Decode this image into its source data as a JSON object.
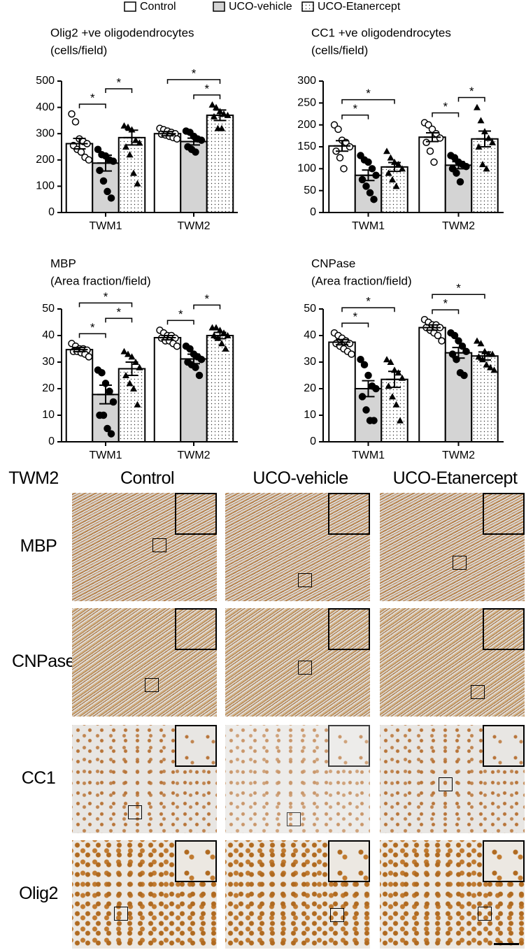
{
  "chart_data": [
    {
      "type": "bar",
      "title": "Olig2 +ve oligodendrocytes",
      "subtitle": "(cells/field)",
      "categories": [
        "TWM1",
        "TWM2"
      ],
      "ylim": [
        0,
        500
      ],
      "yticks": [
        0,
        100,
        200,
        300,
        400,
        500
      ],
      "series": [
        {
          "name": "Control",
          "color": "#ffffff",
          "marker": "open-circle",
          "values": [
            262,
            300
          ],
          "errors": [
            20,
            8
          ],
          "points": [
            [
              375,
              345,
              280,
              270,
              262,
              255,
              240,
              230,
              210,
              200
            ],
            [
              320,
              315,
              310,
              305,
              300,
              298,
              295,
              290,
              285,
              280
            ]
          ]
        },
        {
          "name": "UCO-vehicle",
          "color": "#d4d4d4",
          "marker": "circle",
          "values": [
            188,
            270
          ],
          "errors": [
            30,
            13
          ],
          "points": [
            [
              240,
              220,
              215,
              200,
              195,
              160,
              120,
              80,
              55
            ],
            [
              310,
              305,
              290,
              280,
              275,
              250,
              240,
              230
            ]
          ]
        },
        {
          "name": "UCO-Etanercept",
          "color": "#ffffff",
          "pattern": "dots",
          "marker": "triangle",
          "values": [
            285,
            370
          ],
          "errors": [
            28,
            20
          ],
          "points": [
            [
              330,
              325,
              315,
              275,
              265,
              250,
              220,
              150,
              110
            ],
            [
              410,
              400,
              385,
              375,
              370,
              365,
              320,
              320
            ]
          ]
        }
      ],
      "brackets": [
        {
          "category": "TWM1",
          "from": "Control",
          "to": "UCO-vehicle",
          "label": "*"
        },
        {
          "category": "TWM1",
          "from": "UCO-vehicle",
          "to": "UCO-Etanercept",
          "label": "*"
        },
        {
          "category": "TWM2",
          "from": "UCO-vehicle",
          "to": "UCO-Etanercept",
          "label": "*"
        },
        {
          "category": "TWM2",
          "from": "Control",
          "to": "UCO-Etanercept",
          "label": "*"
        }
      ]
    },
    {
      "type": "bar",
      "title": "CC1 +ve oligodendrocytes",
      "subtitle": "(cells/field)",
      "categories": [
        "TWM1",
        "TWM2"
      ],
      "ylim": [
        0,
        300
      ],
      "yticks": [
        0,
        50,
        100,
        150,
        200,
        250,
        300
      ],
      "series": [
        {
          "name": "Control",
          "color": "#ffffff",
          "marker": "open-circle",
          "values": [
            152,
            172
          ],
          "errors": [
            12,
            10
          ],
          "points": [
            [
              200,
              190,
              165,
              160,
              150,
              140,
              125,
              100
            ],
            [
              205,
              200,
              190,
              180,
              170,
              160,
              140,
              115
            ]
          ]
        },
        {
          "name": "UCO-vehicle",
          "color": "#d4d4d4",
          "marker": "circle",
          "values": [
            85,
            108
          ],
          "errors": [
            12,
            8
          ],
          "points": [
            [
              130,
              120,
              115,
              100,
              85,
              75,
              60,
              45,
              30
            ],
            [
              130,
              125,
              115,
              110,
              105,
              100,
              90,
              70
            ]
          ]
        },
        {
          "name": "UCO-Etanercept",
          "color": "#ffffff",
          "pattern": "dots",
          "marker": "triangle",
          "values": [
            104,
            168
          ],
          "errors": [
            10,
            18
          ],
          "points": [
            [
              140,
              125,
              115,
              110,
              100,
              90,
              75,
              60
            ],
            [
              240,
              210,
              185,
              170,
              160,
              150,
              110,
              100
            ]
          ]
        }
      ],
      "brackets": [
        {
          "category": "TWM1",
          "from": "Control",
          "to": "UCO-vehicle",
          "label": "*"
        },
        {
          "category": "TWM1",
          "from": "Control",
          "to": "UCO-Etanercept",
          "label": "*"
        },
        {
          "category": "TWM2",
          "from": "Control",
          "to": "UCO-vehicle",
          "label": "*"
        },
        {
          "category": "TWM2",
          "from": "UCO-vehicle",
          "to": "UCO-Etanercept",
          "label": "*"
        }
      ]
    },
    {
      "type": "bar",
      "title": "MBP",
      "subtitle": "(Area fraction/field)",
      "categories": [
        "TWM1",
        "TWM2"
      ],
      "ylim": [
        0,
        50
      ],
      "yticks": [
        0,
        10,
        20,
        30,
        40,
        50
      ],
      "series": [
        {
          "name": "Control",
          "color": "#ffffff",
          "marker": "open-circle",
          "values": [
            34.7,
            39.2
          ],
          "errors": [
            0.8,
            0.8
          ],
          "points": [
            [
              37,
              36,
              35,
              35,
              34.5,
              34,
              34,
              33.5,
              33,
              32
            ],
            [
              42,
              41,
              40,
              40,
              39,
              39,
              38,
              38,
              37,
              36
            ]
          ]
        },
        {
          "name": "UCO-vehicle",
          "color": "#d4d4d4",
          "marker": "circle",
          "values": [
            17.8,
            31.2
          ],
          "errors": [
            3.5,
            1.8
          ],
          "points": [
            [
              27,
              26,
              22,
              19,
              15,
              10,
              10,
              5,
              3
            ],
            [
              36,
              35,
              33,
              32,
              31,
              30,
              29,
              28,
              25
            ]
          ]
        },
        {
          "name": "UCO-Etanercept",
          "color": "#ffffff",
          "pattern": "dots",
          "marker": "triangle",
          "values": [
            27.5,
            40
          ],
          "errors": [
            2.5,
            1.2
          ],
          "points": [
            [
              34,
              33,
              32,
              30,
              28,
              25,
              22,
              20,
              14
            ],
            [
              43,
              43,
              42,
              41,
              40,
              40,
              39,
              37,
              35
            ]
          ]
        }
      ],
      "brackets": [
        {
          "category": "TWM1",
          "from": "Control",
          "to": "UCO-vehicle",
          "label": "*"
        },
        {
          "category": "TWM1",
          "from": "UCO-vehicle",
          "to": "UCO-Etanercept",
          "label": "*"
        },
        {
          "category": "TWM1",
          "from": "Control",
          "to": "UCO-Etanercept",
          "label": "*"
        },
        {
          "category": "TWM2",
          "from": "Control",
          "to": "UCO-vehicle",
          "label": "*"
        },
        {
          "category": "TWM2",
          "from": "UCO-vehicle",
          "to": "UCO-Etanercept",
          "label": "*"
        }
      ]
    },
    {
      "type": "bar",
      "title": "CNPase",
      "subtitle": "(Area fraction/field)",
      "categories": [
        "TWM1",
        "TWM2"
      ],
      "ylim": [
        0,
        50
      ],
      "yticks": [
        0,
        10,
        20,
        30,
        40,
        50
      ],
      "series": [
        {
          "name": "Control",
          "color": "#ffffff",
          "marker": "open-circle",
          "values": [
            37.5,
            43
          ],
          "errors": [
            1,
            1
          ],
          "points": [
            [
              41,
              40,
              39,
              38,
              37,
              37,
              36,
              35,
              34,
              33
            ],
            [
              46,
              45,
              44,
              44,
              43,
              43,
              42,
              41,
              40,
              38
            ]
          ]
        },
        {
          "name": "UCO-vehicle",
          "color": "#d4d4d4",
          "marker": "circle",
          "values": [
            20,
            33.5
          ],
          "errors": [
            3,
            2
          ],
          "points": [
            [
              31,
              29,
              25,
              21,
              20,
              17,
              12,
              8,
              8
            ],
            [
              41,
              40,
              38,
              36,
              34,
              33,
              31,
              26,
              25
            ]
          ]
        },
        {
          "name": "UCO-Etanercept",
          "color": "#ffffff",
          "pattern": "dots",
          "marker": "triangle",
          "values": [
            23.5,
            32.3
          ],
          "errors": [
            3,
            1.5
          ],
          "points": [
            [
              31,
              30,
              27,
              26,
              24,
              21,
              17,
              14,
              8
            ],
            [
              38,
              37,
              34,
              33,
              33,
              32,
              31,
              29,
              28,
              27
            ]
          ]
        }
      ],
      "brackets": [
        {
          "category": "TWM1",
          "from": "Control",
          "to": "UCO-vehicle",
          "label": "*"
        },
        {
          "category": "TWM1",
          "from": "Control",
          "to": "UCO-Etanercept",
          "label": "*"
        },
        {
          "category": "TWM2",
          "from": "Control",
          "to": "UCO-vehicle",
          "label": "*"
        },
        {
          "category": "TWM2",
          "from": "Control",
          "to": "UCO-Etanercept",
          "label": "*"
        }
      ]
    }
  ],
  "micrographs": {
    "region": "TWM2",
    "columns": [
      "Control",
      "UCO-vehicle",
      "UCO-Etanercept"
    ],
    "rows": [
      "MBP",
      "CNPase",
      "CC1",
      "Olig2"
    ]
  }
}
